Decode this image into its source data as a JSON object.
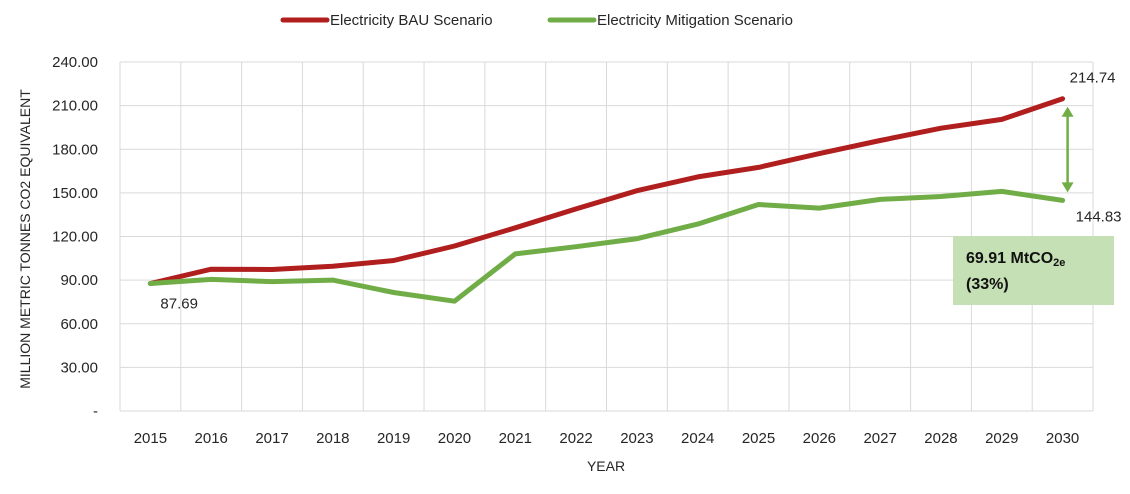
{
  "chart_data": {
    "type": "line",
    "title": "",
    "xlabel": "YEAR",
    "ylabel": "MILLION METRIC  TONNES CO2 EQUIVALENT",
    "ylim": [
      0,
      240
    ],
    "yticks": [
      0,
      30,
      60,
      90,
      120,
      150,
      180,
      210,
      240
    ],
    "ytick_labels": [
      "-",
      "30.00",
      "60.00",
      "90.00",
      "120.00",
      "150.00",
      "180.00",
      "210.00",
      "240.00"
    ],
    "categories": [
      "2015",
      "2016",
      "2017",
      "2018",
      "2019",
      "2020",
      "2021",
      "2022",
      "2023",
      "2024",
      "2025",
      "2026",
      "2027",
      "2028",
      "2029",
      "2030"
    ],
    "grid": "vertical and horizontal",
    "legend_position": "top-center",
    "series": [
      {
        "name": "Electricity BAU Scenario",
        "color": "#b01e1e",
        "values": [
          87.69,
          97.5,
          97.3,
          99.5,
          103.5,
          113.5,
          126.0,
          139.0,
          151.5,
          161.0,
          167.5,
          177.0,
          186.0,
          194.5,
          200.5,
          214.74
        ]
      },
      {
        "name": "Electricity Mitigation Scenario",
        "color": "#70ad47",
        "values": [
          87.69,
          90.5,
          89.0,
          90.0,
          81.5,
          75.5,
          108.0,
          113.0,
          118.5,
          128.5,
          142.0,
          139.5,
          145.5,
          147.5,
          151.0,
          144.83
        ]
      }
    ],
    "data_labels": [
      {
        "text": "87.69",
        "category": "2015",
        "value": 87.69
      },
      {
        "text": "214.74",
        "category": "2030",
        "value": 214.74
      },
      {
        "text": "144.83",
        "category": "2030",
        "value": 144.83
      }
    ],
    "annotation": {
      "line1_main": "69.91 MtCO",
      "line1_sub": "2e",
      "line2": "(33%)",
      "fill_color": "#c5e0b4",
      "arrow_color": "#70ad47",
      "arrow_from": 214.74,
      "arrow_to": 144.83
    }
  }
}
